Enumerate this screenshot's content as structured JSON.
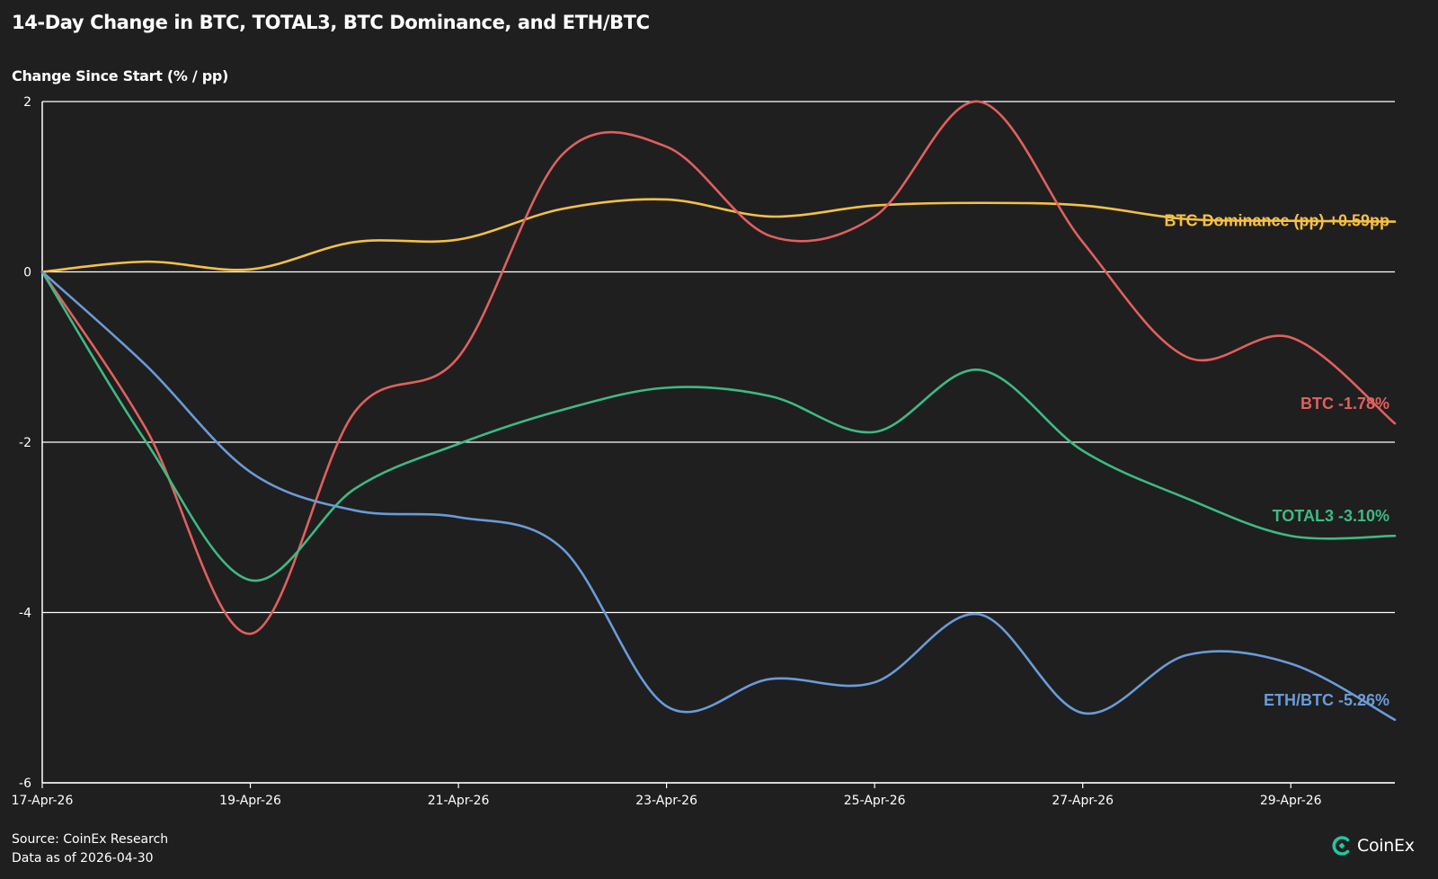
{
  "chart_data": {
    "type": "line",
    "title": "14-Day Change in BTC, TOTAL3, BTC Dominance, and ETH/BTC",
    "ylabel": "Change Since Start (% / pp)",
    "xlabel": "",
    "ylim": [
      -6,
      2
    ],
    "yticks": [
      -6,
      -4,
      -2,
      0,
      2
    ],
    "grid": true,
    "x": [
      "17-Apr-26",
      "18-Apr-26",
      "19-Apr-26",
      "20-Apr-26",
      "21-Apr-26",
      "22-Apr-26",
      "23-Apr-26",
      "24-Apr-26",
      "25-Apr-26",
      "26-Apr-26",
      "27-Apr-26",
      "28-Apr-26",
      "29-Apr-26",
      "30-Apr-26"
    ],
    "xticks": [
      "17-Apr-26",
      "19-Apr-26",
      "21-Apr-26",
      "23-Apr-26",
      "25-Apr-26",
      "27-Apr-26",
      "29-Apr-26"
    ],
    "series": [
      {
        "name": "BTC Dominance (pp)",
        "label": "BTC Dominance (pp) +0.59pp",
        "color": "#f5c044",
        "values": [
          0,
          0.12,
          0.03,
          0.35,
          0.38,
          0.74,
          0.85,
          0.65,
          0.78,
          0.81,
          0.78,
          0.62,
          0.6,
          0.59
        ]
      },
      {
        "name": "BTC",
        "label": "BTC -1.78%",
        "color": "#e0605f",
        "values": [
          0,
          -1.85,
          -4.25,
          -1.65,
          -1.0,
          1.38,
          1.47,
          0.42,
          0.65,
          2.0,
          0.35,
          -1.0,
          -0.77,
          -1.78
        ]
      },
      {
        "name": "TOTAL3",
        "label": "TOTAL3 -3.10%",
        "color": "#3dba83",
        "values": [
          0,
          -2.0,
          -3.62,
          -2.55,
          -2.02,
          -1.62,
          -1.36,
          -1.46,
          -1.88,
          -1.15,
          -2.1,
          -2.66,
          -3.1,
          -3.1
        ]
      },
      {
        "name": "ETH/BTC",
        "label": "ETH/BTC -5.26%",
        "color": "#6a9bd8",
        "values": [
          0,
          -1.1,
          -2.35,
          -2.8,
          -2.88,
          -3.25,
          -5.1,
          -4.78,
          -4.82,
          -4.02,
          -5.18,
          -4.5,
          -4.6,
          -5.26
        ]
      }
    ]
  },
  "footer": {
    "source": "Source: CoinEx Research",
    "asof": "Data as of 2026-04-30"
  },
  "brand": {
    "name": "CoinEx",
    "icon": "coinex-logo-icon",
    "color": "#1ec8a0"
  }
}
